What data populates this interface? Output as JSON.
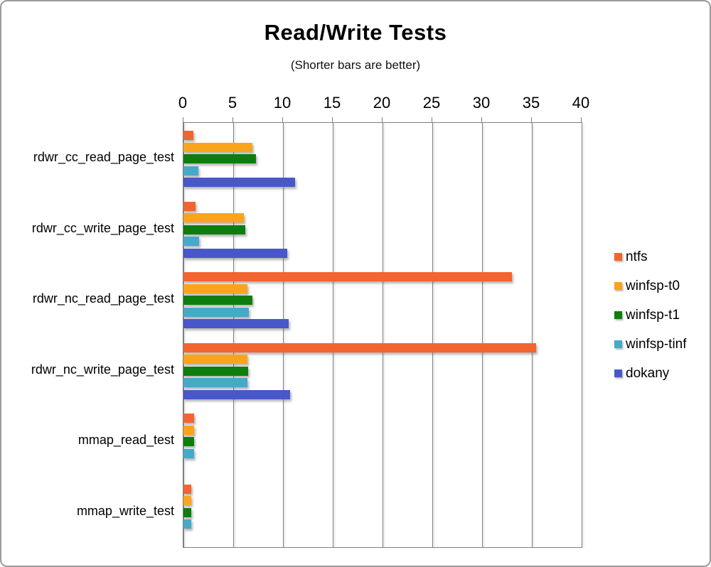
{
  "chart_data": {
    "type": "bar",
    "orientation": "horizontal",
    "title": "Read/Write Tests",
    "subtitle": "(Shorter bars are better)",
    "xlabel": "",
    "ylabel": "",
    "xlim": [
      0,
      40
    ],
    "xticks": [
      0,
      5,
      10,
      15,
      20,
      25,
      30,
      35,
      40
    ],
    "grid": true,
    "legend_position": "right",
    "axis_color": "#7f7f7f",
    "categories": [
      "rdwr_cc_read_page_test",
      "rdwr_cc_write_page_test",
      "rdwr_nc_read_page_test",
      "rdwr_nc_write_page_test",
      "mmap_read_test",
      "mmap_write_test"
    ],
    "series": [
      {
        "name": "ntfs",
        "color": "#F26430",
        "values": [
          1.0,
          1.2,
          33.0,
          35.4,
          1.1,
          0.8
        ]
      },
      {
        "name": "winfsp-t0",
        "color": "#FAA41B",
        "values": [
          6.9,
          6.1,
          6.4,
          6.4,
          1.1,
          0.8
        ]
      },
      {
        "name": "winfsp-t1",
        "color": "#0D7E0D",
        "values": [
          7.3,
          6.2,
          6.9,
          6.5,
          1.1,
          0.8
        ]
      },
      {
        "name": "winfsp-tinf",
        "color": "#46A9C8",
        "values": [
          1.5,
          1.6,
          6.6,
          6.4,
          1.1,
          0.8
        ]
      },
      {
        "name": "dokany",
        "color": "#4858C8",
        "values": [
          11.2,
          10.4,
          10.6,
          10.7,
          null,
          null
        ]
      }
    ]
  }
}
